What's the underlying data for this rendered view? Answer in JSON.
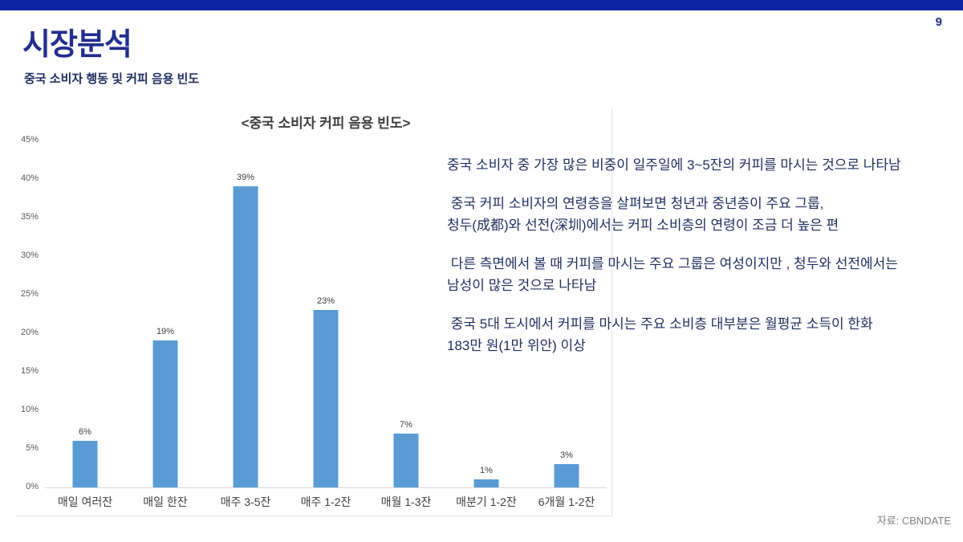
{
  "slide": {
    "page_number": "9",
    "title": "시장분석",
    "subtitle": "중국 소비자 행동 및 커피 음용 빈도",
    "source": "자료: CBNDATE"
  },
  "notes": {
    "paragraphs": [
      "중국 소비자 중 가장 많은 비중이 일주일에 3~5잔의 커피를 마시는 것으로 나타남",
      " 중국 커피 소비자의 연령층을 살펴보면 청년과 중년층이 주요 그룹,\n청두(成都)와 선전(深圳)에서는 커피 소비층의 연령이 조금 더 높은 편",
      " 다른 측면에서 볼 때 커피를 마시는 주요 그룹은 여성이지만 , 청두와 선전에서는\n남성이 많은 것으로 나타남",
      " 중국 5대 도시에서 커피를 마시는 주요 소비층 대부분은 월평균 소득이 한화\n183만 원(1만 위안) 이상"
    ]
  },
  "chart_data": {
    "type": "bar",
    "title": "<중국 소비자 커피 음용 빈도>",
    "categories": [
      "매일 여러잔",
      "매일 한잔",
      "매주 3-5잔",
      "매주 1-2잔",
      "매월 1-3잔",
      "매분기 1-2잔",
      "6개월 1-2잔"
    ],
    "values": [
      6,
      19,
      39,
      23,
      7,
      1,
      3
    ],
    "value_labels": [
      "6%",
      "19%",
      "39%",
      "23%",
      "7%",
      "1%",
      "3%"
    ],
    "y_ticks": [
      "45%",
      "40%",
      "35%",
      "30%",
      "25%",
      "20%",
      "15%",
      "10%",
      "5%",
      "0%"
    ],
    "ylim": [
      0,
      45
    ],
    "xlabel": "",
    "ylabel": "",
    "grid": false,
    "legend": "none",
    "bar_color": "#5b9bd5"
  },
  "colors": {
    "accent_bar": "#0d23a6",
    "title_navy": "#232e8e",
    "body_navy": "#203060",
    "bar_blue": "#5b9bd5",
    "axis_gray": "#d9d9d9",
    "label_gray": "#595959"
  }
}
